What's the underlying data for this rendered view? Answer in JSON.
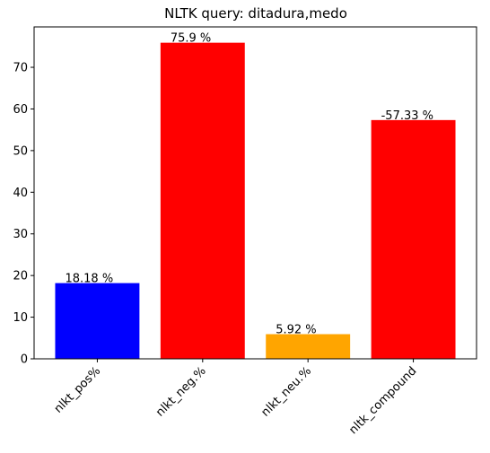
{
  "chart_data": {
    "type": "bar",
    "title": "NLTK query: ditadura,medo",
    "xlabel": "",
    "ylabel": "",
    "categories": [
      "nlkt_pos%",
      "nlkt_neg.%",
      "nlkt_neu.%",
      "nltk_compound"
    ],
    "values": [
      18.18,
      75.9,
      5.92,
      57.33
    ],
    "bar_labels": [
      "18.18 %",
      "75.9 %",
      "5.92 %",
      "-57.33 %"
    ],
    "colors": [
      "#0000ff",
      "#ff0000",
      "#ffa500",
      "#ff0000"
    ],
    "yticks": [
      0,
      10,
      20,
      30,
      40,
      50,
      60,
      70
    ],
    "ylim": [
      0,
      79.7
    ],
    "grid": false,
    "legend": "none"
  }
}
